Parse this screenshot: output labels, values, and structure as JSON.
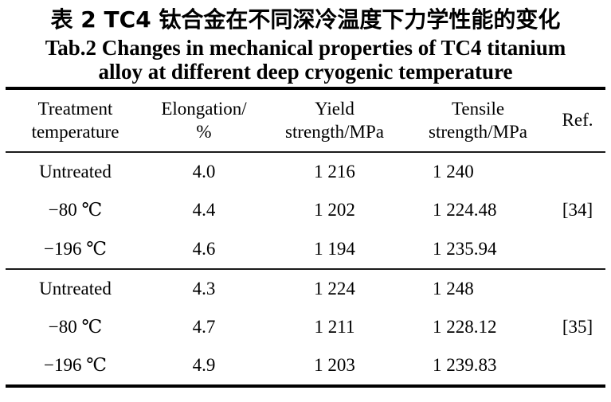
{
  "colors": {
    "background": "#ffffff",
    "text": "#000000",
    "rule": "#000000"
  },
  "title": {
    "zh": "表 2  TC4 钛合金在不同深冷温度下力学性能的变化",
    "en_line1": "Tab.2 Changes in mechanical properties of TC4 titanium",
    "en_line2": "alloy at different deep cryogenic temperature"
  },
  "table": {
    "header": [
      {
        "line1": "Treatment",
        "line2": "temperature"
      },
      {
        "line1": "Elongation/",
        "line2": "%"
      },
      {
        "line1": "Yield",
        "line2": "strength/MPa"
      },
      {
        "line1": "Tensile",
        "line2": "strength/MPa"
      },
      {
        "line1": "Ref.",
        "line2": ""
      }
    ],
    "groups": [
      {
        "rows": [
          {
            "cells": [
              "Untreated",
              "4.0",
              "1 216",
              "1 240",
              ""
            ]
          },
          {
            "cells": [
              "−80 ℃",
              "4.4",
              "1 202",
              "1 224.48",
              "[34]"
            ]
          },
          {
            "cells": [
              "−196 ℃",
              "4.6",
              "1 194",
              "1 235.94",
              ""
            ]
          }
        ]
      },
      {
        "rows": [
          {
            "cells": [
              "Untreated",
              "4.3",
              "1 224",
              "1 248",
              ""
            ]
          },
          {
            "cells": [
              "−80 ℃",
              "4.7",
              "1 211",
              "1 228.12",
              "[35]"
            ]
          },
          {
            "cells": [
              "−196 ℃",
              "4.9",
              "1 203",
              "1 239.83",
              ""
            ]
          }
        ]
      }
    ]
  },
  "chart_data": {
    "type": "table",
    "title_zh": "表 2  TC4 钛合金在不同深冷温度下力学性能的变化",
    "title_en": "Tab.2 Changes in mechanical properties of TC4 titanium alloy at different deep cryogenic temperature",
    "columns": [
      "Treatment temperature",
      "Elongation/%",
      "Yield strength/MPa",
      "Tensile strength/MPa",
      "Ref."
    ],
    "rows": [
      [
        "Untreated",
        4.0,
        1216,
        1240,
        ""
      ],
      [
        "−80 ℃",
        4.4,
        1202,
        1224.48,
        "[34]"
      ],
      [
        "−196 ℃",
        4.6,
        1194,
        1235.94,
        "[34]"
      ],
      [
        "Untreated",
        4.3,
        1224,
        1248,
        ""
      ],
      [
        "−80 ℃",
        4.7,
        1211,
        1228.12,
        "[35]"
      ],
      [
        "−196 ℃",
        4.9,
        1203,
        1239.83,
        "[35]"
      ]
    ]
  }
}
